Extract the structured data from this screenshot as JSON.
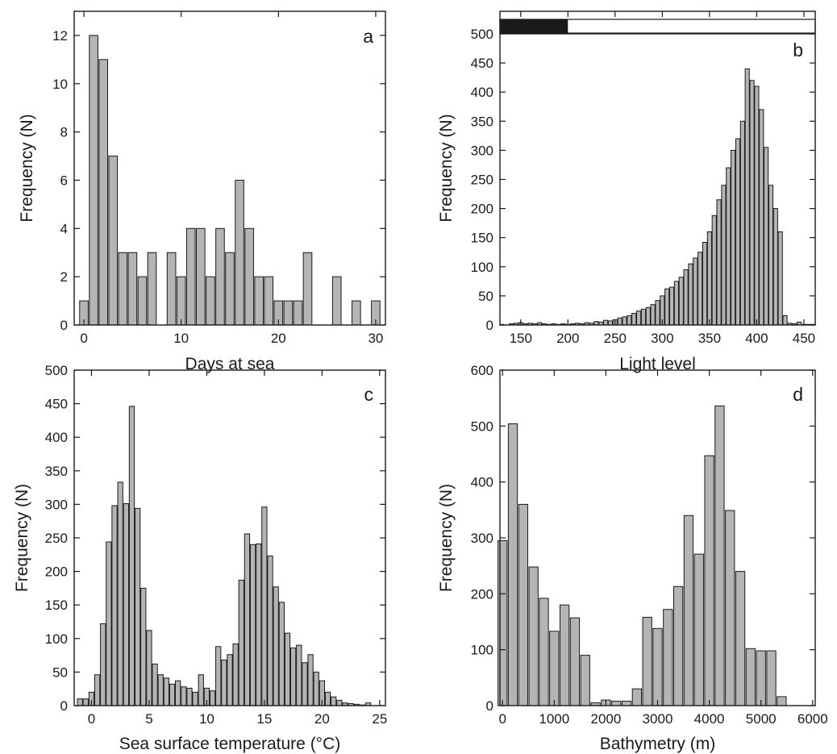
{
  "chart_data": [
    {
      "type": "bar",
      "panel_label": "a",
      "xlabel": "Days at sea",
      "ylabel": "Frequency (N)",
      "xlim": [
        -1,
        31
      ],
      "ylim": [
        0,
        13
      ],
      "xticks": [
        0,
        10,
        20,
        30
      ],
      "yticks": [
        0,
        2,
        4,
        6,
        8,
        10,
        12
      ],
      "bin_width": 1,
      "x": [
        0,
        1,
        2,
        3,
        4,
        5,
        6,
        7,
        9,
        10,
        11,
        12,
        13,
        14,
        15,
        16,
        17,
        18,
        19,
        20,
        21,
        22,
        23,
        26,
        28,
        30
      ],
      "values": [
        1,
        12,
        11,
        7,
        3,
        3,
        2,
        3,
        3,
        2,
        4,
        4,
        2,
        4,
        3,
        6,
        4,
        2,
        2,
        1,
        1,
        1,
        3,
        2,
        1,
        1
      ]
    },
    {
      "type": "bar",
      "panel_label": "b",
      "xlabel": "Light level",
      "ylabel": "Frequency (N)",
      "xlim": [
        128,
        462
      ],
      "ylim": [
        0,
        500
      ],
      "xticks": [
        150,
        200,
        250,
        300,
        350,
        400,
        450
      ],
      "yticks": [
        0,
        50,
        100,
        150,
        200,
        250,
        300,
        350,
        400,
        450,
        500
      ],
      "bin_width": 5,
      "top_band": {
        "dark_until_x": 200,
        "dark_color": "#1a1a1a",
        "light_color": "#ffffff"
      },
      "x": [
        130,
        135,
        140,
        145,
        150,
        155,
        160,
        165,
        170,
        175,
        180,
        185,
        190,
        195,
        200,
        205,
        210,
        215,
        220,
        225,
        230,
        235,
        240,
        245,
        250,
        255,
        260,
        265,
        270,
        275,
        280,
        285,
        290,
        295,
        300,
        305,
        310,
        315,
        320,
        325,
        330,
        335,
        340,
        345,
        350,
        355,
        360,
        365,
        370,
        375,
        380,
        385,
        390,
        395,
        400,
        405,
        410,
        415,
        420,
        425,
        430,
        435,
        440,
        445,
        450,
        455,
        460
      ],
      "values": [
        1,
        0,
        2,
        3,
        4,
        2,
        3,
        2,
        4,
        2,
        1,
        2,
        1,
        2,
        1,
        2,
        3,
        2,
        4,
        3,
        6,
        5,
        8,
        7,
        9,
        12,
        14,
        16,
        20,
        24,
        27,
        30,
        35,
        42,
        50,
        62,
        65,
        75,
        82,
        95,
        105,
        115,
        125,
        142,
        160,
        188,
        215,
        240,
        270,
        300,
        320,
        350,
        440,
        420,
        410,
        370,
        305,
        240,
        200,
        160,
        16,
        3,
        2,
        5,
        1,
        1,
        1
      ]
    },
    {
      "type": "bar",
      "panel_label": "c",
      "xlabel": "Sea surface temperature (°C)",
      "ylabel": "Frequency (N)",
      "xlim": [
        -1.5,
        25.5
      ],
      "ylim": [
        0,
        500
      ],
      "xticks": [
        0,
        5,
        10,
        15,
        20,
        25
      ],
      "yticks": [
        0,
        50,
        100,
        150,
        200,
        250,
        300,
        350,
        400,
        450,
        500
      ],
      "bin_width": 0.5,
      "x": [
        -1.0,
        -0.5,
        0.0,
        0.5,
        1.0,
        1.5,
        2.0,
        2.5,
        3.0,
        3.5,
        4.0,
        4.5,
        5.0,
        5.5,
        6.0,
        6.5,
        7.0,
        7.5,
        8.0,
        8.5,
        9.0,
        9.5,
        10.0,
        10.5,
        11.0,
        11.5,
        12.0,
        12.5,
        13.0,
        13.5,
        14.0,
        14.5,
        15.0,
        15.5,
        16.0,
        16.5,
        17.0,
        17.5,
        18.0,
        18.5,
        19.0,
        19.5,
        20.0,
        20.5,
        21.0,
        21.5,
        22.0,
        22.5,
        23.0,
        23.5,
        24.0
      ],
      "values": [
        10,
        10,
        20,
        46,
        122,
        244,
        298,
        333,
        301,
        446,
        294,
        175,
        112,
        62,
        46,
        41,
        32,
        37,
        28,
        26,
        20,
        46,
        26,
        22,
        88,
        68,
        76,
        92,
        187,
        256,
        240,
        241,
        296,
        223,
        177,
        154,
        108,
        86,
        90,
        64,
        76,
        50,
        37,
        20,
        13,
        8,
        4,
        3,
        2,
        1,
        4
      ]
    },
    {
      "type": "bar",
      "panel_label": "d",
      "xlabel": "Bathymetry (m)",
      "ylabel": "Frequency (N)",
      "xlim": [
        -50,
        6050
      ],
      "ylim": [
        0,
        600
      ],
      "xticks": [
        0,
        1000,
        2000,
        3000,
        4000,
        5000,
        6000
      ],
      "yticks": [
        0,
        100,
        200,
        300,
        400,
        500,
        600
      ],
      "bin_width": 200,
      "x": [
        0,
        200,
        400,
        600,
        800,
        1000,
        1200,
        1400,
        1600,
        1800,
        2000,
        2200,
        2400,
        2600,
        2800,
        3000,
        3200,
        3400,
        3600,
        3800,
        4000,
        4200,
        4400,
        4600,
        4800,
        5000,
        5200,
        5400
      ],
      "values": [
        295,
        504,
        360,
        248,
        192,
        133,
        180,
        157,
        90,
        5,
        10,
        8,
        8,
        30,
        158,
        138,
        172,
        213,
        340,
        271,
        447,
        536,
        349,
        240,
        102,
        98,
        98,
        16
      ]
    }
  ]
}
